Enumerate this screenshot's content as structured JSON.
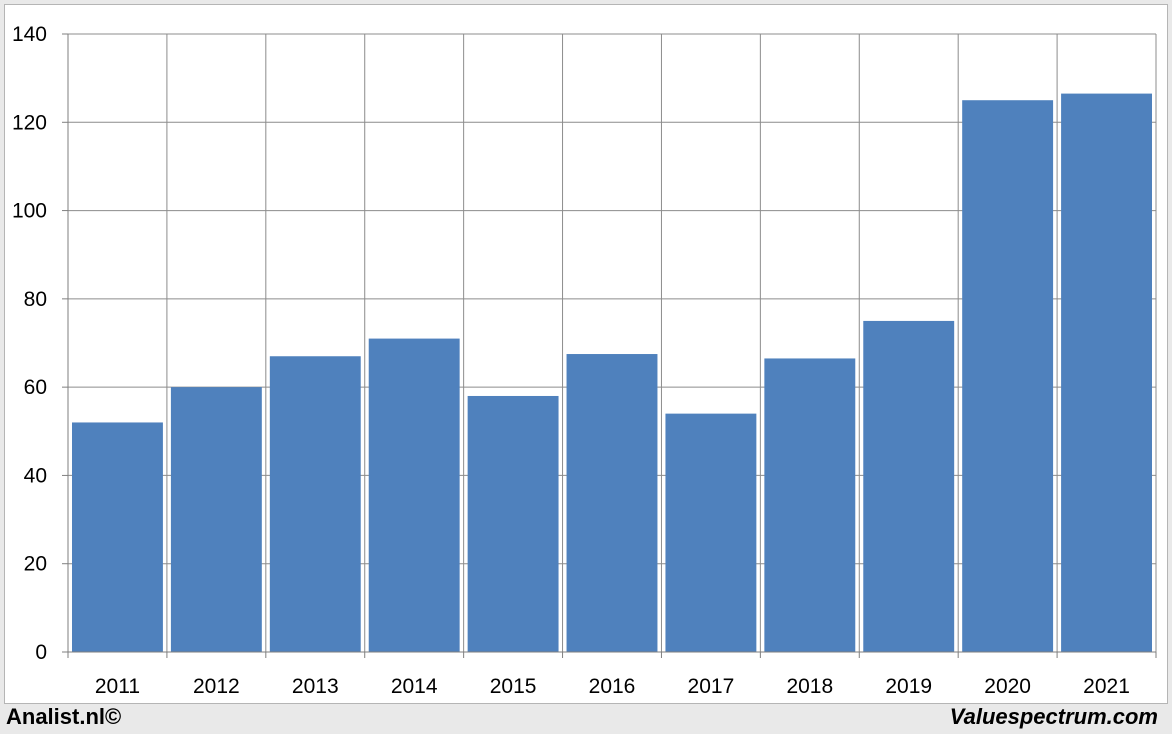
{
  "chart_data": {
    "type": "bar",
    "categories": [
      "2011",
      "2012",
      "2013",
      "2014",
      "2015",
      "2016",
      "2017",
      "2018",
      "2019",
      "2020",
      "2021"
    ],
    "values": [
      52,
      60,
      67,
      71,
      58,
      67.5,
      54,
      66.5,
      75,
      125,
      126.5
    ],
    "title": "",
    "xlabel": "",
    "ylabel": "",
    "ylim": [
      0,
      140
    ],
    "yticks": [
      0,
      20,
      40,
      60,
      80,
      100,
      120,
      140
    ],
    "grid": true,
    "bar_color": "#4f81bd",
    "grid_color": "#8c8c8c"
  },
  "footer": {
    "left": "Analist.nl©",
    "right": "Valuespectrum.com"
  }
}
